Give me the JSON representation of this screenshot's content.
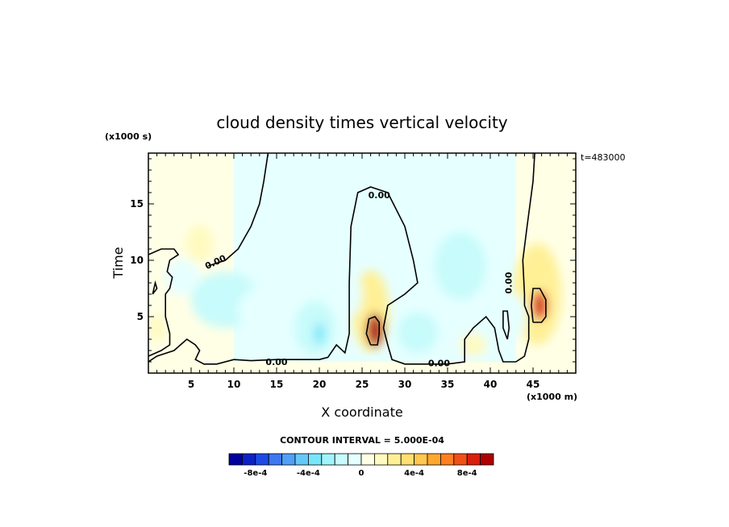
{
  "chart_data": {
    "type": "heatmap",
    "title": "cloud density times vertical velocity",
    "xlabel": "X coordinate",
    "ylabel": "Time",
    "x_unit_label": "(x1000 m)",
    "y_unit_label": "(x1000 s)",
    "time_stamp": "t=483000",
    "xlim": [
      0,
      50
    ],
    "ylim": [
      0,
      19.5
    ],
    "xticks": [
      5,
      10,
      15,
      20,
      25,
      30,
      35,
      40,
      45
    ],
    "yticks": [
      5,
      10,
      15
    ],
    "contour_interval_text": "CONTOUR INTERVAL = 5.000E-04",
    "contour_line_label": "0.00",
    "contour_line_labels": [
      "0.00",
      "0.00",
      "0.00",
      "0.00",
      "0.00"
    ],
    "colorbar": {
      "colors": [
        "#00009f",
        "#0c22c8",
        "#1e4be6",
        "#3c78f0",
        "#50a0f5",
        "#64c8f8",
        "#78e6fa",
        "#a0f5fb",
        "#c8fbfb",
        "#e6ffff",
        "#ffffe6",
        "#fffac0",
        "#fff096",
        "#ffe070",
        "#ffc850",
        "#ffa830",
        "#ff8020",
        "#f05014",
        "#d8200c",
        "#b00000"
      ],
      "tick_labels": [
        "-8e-4",
        "-4e-4",
        "0",
        "4e-4",
        "8e-4"
      ],
      "tick_values": [
        -0.0008,
        -0.0004,
        0,
        0.0004,
        0.0008
      ],
      "range": [
        -0.001,
        0.001
      ]
    },
    "background_fields": [
      {
        "x": 0,
        "x_end": 50,
        "y": 0,
        "y_end": 19.5,
        "value": 3e-05
      },
      {
        "x": 10,
        "x_end": 43,
        "y": 1,
        "y_end": 19.5,
        "value": -3e-05
      }
    ],
    "features": [
      {
        "name": "updraft-26km",
        "x": 26.5,
        "y": 3.8,
        "rx": 1.0,
        "ry": 1.5,
        "value": 0.00092
      },
      {
        "name": "updraft-26km-halo",
        "x": 26.0,
        "y": 5.5,
        "rx": 2.2,
        "ry": 3.6,
        "value": 0.00028
      },
      {
        "name": "updraft-45km",
        "x": 45.8,
        "y": 6.0,
        "rx": 0.9,
        "ry": 1.3,
        "value": 0.00088
      },
      {
        "name": "updraft-45km-halo",
        "x": 45.5,
        "y": 7.0,
        "rx": 2.8,
        "ry": 4.5,
        "value": 0.00025
      },
      {
        "name": "updraft-6km",
        "x": 6.0,
        "y": 11.5,
        "rx": 1.6,
        "ry": 1.6,
        "value": 0.00012
      },
      {
        "name": "updraft-1km",
        "x": 1.0,
        "y": 4.0,
        "rx": 1.0,
        "ry": 1.2,
        "value": 0.0001
      },
      {
        "name": "updraft-38km",
        "x": 38.0,
        "y": 2.5,
        "rx": 1.5,
        "ry": 1.0,
        "value": 0.0001
      },
      {
        "name": "downdraft-19km",
        "x": 19.5,
        "y": 4.0,
        "rx": 2.4,
        "ry": 2.4,
        "value": -0.00018
      },
      {
        "name": "downdraft-20km-core",
        "x": 20.0,
        "y": 3.5,
        "rx": 0.6,
        "ry": 1.0,
        "value": -0.00032
      },
      {
        "name": "downdraft-31km",
        "x": 31.5,
        "y": 3.6,
        "rx": 2.4,
        "ry": 1.8,
        "value": -0.00016
      },
      {
        "name": "downdraft-9km",
        "x": 9.0,
        "y": 6.5,
        "rx": 4.0,
        "ry": 2.5,
        "value": -0.00014
      },
      {
        "name": "downdraft-13km",
        "x": 13.0,
        "y": 5.5,
        "rx": 2.5,
        "ry": 2.0,
        "value": -0.0001
      },
      {
        "name": "downdraft-36km",
        "x": 36.5,
        "y": 9.5,
        "rx": 3.0,
        "ry": 3.0,
        "value": -0.00012
      },
      {
        "name": "downdraft-4km",
        "x": 4.0,
        "y": 8.5,
        "rx": 2.0,
        "ry": 1.6,
        "value": -8e-05
      },
      {
        "name": "downdraft-43km",
        "x": 43.0,
        "y": 5.0,
        "rx": 1.2,
        "ry": 2.0,
        "value": -6e-05
      },
      {
        "name": "downdraft-24km",
        "x": 23.5,
        "y": 7.0,
        "rx": 1.5,
        "ry": 2.0,
        "value": -6e-05
      }
    ],
    "zero_contours": [
      [
        [
          0,
          1
        ],
        [
          1,
          1.5
        ],
        [
          3,
          2
        ],
        [
          4.5,
          3
        ],
        [
          5.5,
          2.5
        ],
        [
          6,
          2
        ],
        [
          5.5,
          1.2
        ],
        [
          6.5,
          0.8
        ],
        [
          8,
          0.8
        ],
        [
          10,
          1.2
        ],
        [
          12,
          1.1
        ],
        [
          15,
          1.2
        ],
        [
          18,
          1.2
        ],
        [
          20,
          1.2
        ],
        [
          21,
          1.4
        ],
        [
          22,
          2.5
        ],
        [
          23,
          1.8
        ],
        [
          23.5,
          3.5
        ],
        [
          23.5,
          8
        ],
        [
          23.7,
          13
        ],
        [
          24.5,
          16
        ],
        [
          26,
          16.5
        ],
        [
          28,
          16
        ],
        [
          30,
          13
        ],
        [
          31,
          10
        ],
        [
          31.5,
          8
        ],
        [
          30,
          7
        ],
        [
          28,
          6
        ],
        [
          27.5,
          4
        ],
        [
          28,
          2.5
        ],
        [
          28.5,
          1.2
        ],
        [
          30,
          0.8
        ],
        [
          35,
          0.8
        ],
        [
          37,
          1
        ],
        [
          37,
          3
        ],
        [
          38,
          4
        ],
        [
          39.5,
          5
        ],
        [
          40.5,
          4
        ],
        [
          41,
          2
        ],
        [
          41.5,
          1
        ],
        [
          43,
          1
        ],
        [
          44,
          1.5
        ],
        [
          44.5,
          3
        ],
        [
          44.5,
          5
        ],
        [
          44,
          6
        ],
        [
          44,
          7
        ],
        [
          43.8,
          10
        ],
        [
          44.3,
          13
        ],
        [
          45,
          17
        ],
        [
          45.2,
          19.5
        ]
      ],
      [
        [
          0,
          10.5
        ],
        [
          1.5,
          11
        ],
        [
          3,
          11
        ],
        [
          3.5,
          10.5
        ],
        [
          2.5,
          10
        ],
        [
          2.2,
          9
        ],
        [
          2.8,
          8.5
        ],
        [
          2.5,
          7.5
        ],
        [
          2,
          7
        ],
        [
          2,
          5
        ],
        [
          2.5,
          3.5
        ],
        [
          2.5,
          2.5
        ],
        [
          1.5,
          2
        ],
        [
          0,
          1.5
        ]
      ],
      [
        [
          14,
          19.5
        ],
        [
          13.5,
          17
        ],
        [
          13,
          15
        ],
        [
          12,
          13
        ],
        [
          10.5,
          11
        ],
        [
          9,
          10
        ],
        [
          7,
          9.5
        ]
      ],
      [
        [
          42,
          3
        ],
        [
          41.5,
          4
        ],
        [
          41.5,
          5.5
        ],
        [
          42,
          5.5
        ],
        [
          42.2,
          4
        ],
        [
          42,
          3
        ]
      ],
      [
        [
          0.5,
          7
        ],
        [
          0.8,
          8
        ],
        [
          1,
          7.5
        ],
        [
          0.5,
          7
        ]
      ]
    ],
    "core_contours": [
      [
        [
          26,
          2.5
        ],
        [
          25.5,
          3.5
        ],
        [
          25.8,
          4.8
        ],
        [
          26.5,
          5
        ],
        [
          27,
          4.5
        ],
        [
          27,
          3.5
        ],
        [
          26.8,
          2.5
        ],
        [
          26,
          2.5
        ]
      ],
      [
        [
          45,
          4.5
        ],
        [
          44.8,
          6
        ],
        [
          45,
          7.5
        ],
        [
          45.8,
          7.5
        ],
        [
          46.5,
          6.5
        ],
        [
          46.5,
          5
        ],
        [
          46,
          4.5
        ],
        [
          45,
          4.5
        ]
      ]
    ]
  }
}
